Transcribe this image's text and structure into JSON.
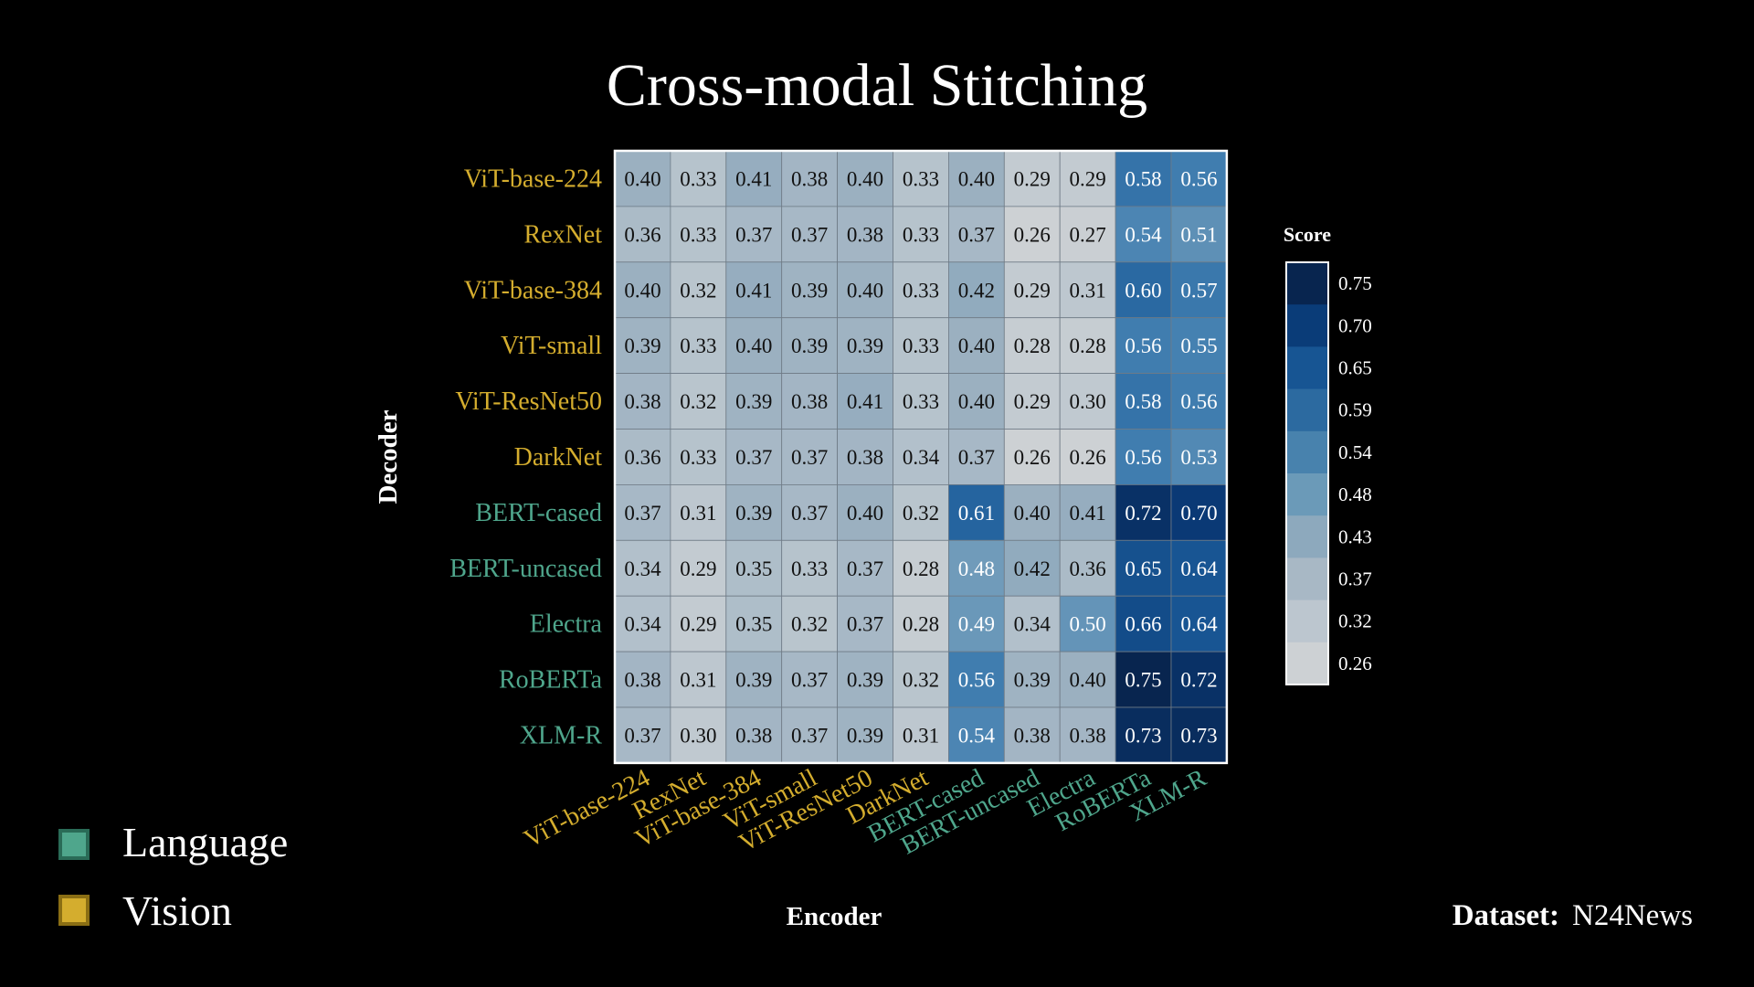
{
  "chart_data": {
    "type": "heatmap",
    "title": "Cross-modal Stitching",
    "xlabel": "Encoder",
    "ylabel": "Decoder",
    "rows": [
      "ViT-base-224",
      "RexNet",
      "ViT-base-384",
      "ViT-small",
      "ViT-ResNet50",
      "DarkNet",
      "BERT-cased",
      "BERT-uncased",
      "Electra",
      "RoBERTa",
      "XLM-R"
    ],
    "columns": [
      "ViT-base-224",
      "RexNet",
      "ViT-base-384",
      "ViT-small",
      "ViT-ResNet50",
      "DarkNet",
      "BERT-cased",
      "BERT-uncased",
      "Electra",
      "RoBERTa",
      "XLM-R"
    ],
    "modality": [
      "Vision",
      "Vision",
      "Vision",
      "Vision",
      "Vision",
      "Vision",
      "Language",
      "Language",
      "Language",
      "Language",
      "Language"
    ],
    "values": [
      [
        0.4,
        0.33,
        0.41,
        0.38,
        0.4,
        0.33,
        0.4,
        0.29,
        0.29,
        0.58,
        0.56
      ],
      [
        0.36,
        0.33,
        0.37,
        0.37,
        0.38,
        0.33,
        0.37,
        0.26,
        0.27,
        0.54,
        0.51
      ],
      [
        0.4,
        0.32,
        0.41,
        0.39,
        0.4,
        0.33,
        0.42,
        0.29,
        0.31,
        0.6,
        0.57
      ],
      [
        0.39,
        0.33,
        0.4,
        0.39,
        0.39,
        0.33,
        0.4,
        0.28,
        0.28,
        0.56,
        0.55
      ],
      [
        0.38,
        0.32,
        0.39,
        0.38,
        0.41,
        0.33,
        0.4,
        0.29,
        0.3,
        0.58,
        0.56
      ],
      [
        0.36,
        0.33,
        0.37,
        0.37,
        0.38,
        0.34,
        0.37,
        0.26,
        0.26,
        0.56,
        0.53
      ],
      [
        0.37,
        0.31,
        0.39,
        0.37,
        0.4,
        0.32,
        0.61,
        0.4,
        0.41,
        0.72,
        0.7
      ],
      [
        0.34,
        0.29,
        0.35,
        0.33,
        0.37,
        0.28,
        0.48,
        0.42,
        0.36,
        0.65,
        0.64
      ],
      [
        0.34,
        0.29,
        0.35,
        0.32,
        0.37,
        0.28,
        0.49,
        0.34,
        0.5,
        0.66,
        0.64
      ],
      [
        0.38,
        0.31,
        0.39,
        0.37,
        0.39,
        0.32,
        0.56,
        0.39,
        0.4,
        0.75,
        0.72
      ],
      [
        0.37,
        0.3,
        0.38,
        0.37,
        0.39,
        0.31,
        0.54,
        0.38,
        0.38,
        0.73,
        0.73
      ]
    ],
    "colorbar": {
      "title": "Score",
      "ticks": [
        "0.75",
        "0.70",
        "0.65",
        "0.59",
        "0.54",
        "0.48",
        "0.43",
        "0.37",
        "0.32",
        "0.26"
      ],
      "min": 0.26,
      "max": 0.75,
      "colors": [
        "#08254f",
        "#0a3c78",
        "#175593",
        "#2c6aa0",
        "#4882ad",
        "#6b9ab8",
        "#8da9bd",
        "#a8b8c5",
        "#bcc6cf",
        "#cdd1d4"
      ]
    },
    "grid": true
  },
  "legend": {
    "items": [
      {
        "label": "Language",
        "color": "#4fa68c"
      },
      {
        "label": "Vision",
        "color": "#d4ad2e"
      }
    ]
  },
  "dataset": {
    "key": "Dataset:",
    "value": "N24News"
  },
  "colors": {
    "background": "#000000",
    "language": "#4fa68c",
    "vision": "#d4ad2e",
    "text": "#ffffff"
  }
}
